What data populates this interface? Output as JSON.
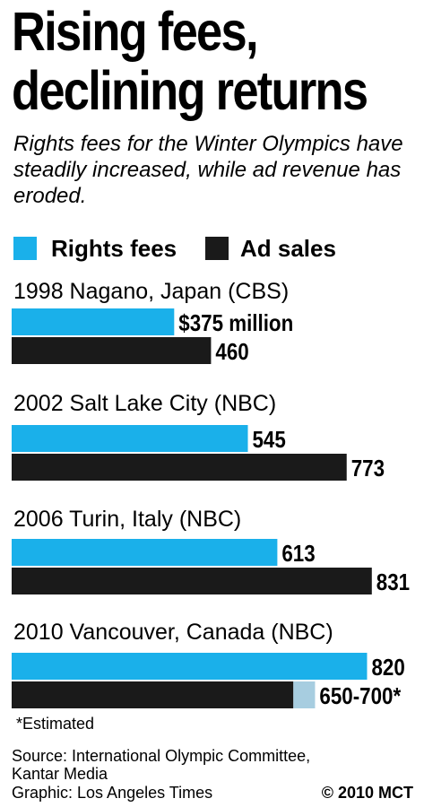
{
  "header": {
    "title_line1": "Rising fees,",
    "title_line2": "declining returns",
    "subtitle": "Rights fees for the Winter Olympics have steadily increased, while ad revenue has eroded."
  },
  "colors": {
    "rights": "#1ab0ea",
    "ad": "#1a1a1a",
    "estimate": "#a7cde0"
  },
  "chart_data": {
    "type": "bar",
    "orientation": "horizontal",
    "legend": [
      "Rights fees",
      "Ad sales"
    ],
    "legend_placement": "top-left",
    "unit": "million",
    "groups": [
      {
        "label": "1998 Nagano, Japan (CBS)",
        "rights": 375,
        "ad": 460,
        "rights_label": "$375 million",
        "ad_label": "460"
      },
      {
        "label": "2002 Salt Lake City (NBC)",
        "rights": 545,
        "ad": 773,
        "rights_label": "545",
        "ad_label": "773"
      },
      {
        "label": "2006 Turin, Italy (NBC)",
        "rights": 613,
        "ad": 831,
        "rights_label": "613",
        "ad_label": "831"
      },
      {
        "label": "2010 Vancouver, Canada (NBC)",
        "rights": 820,
        "ad": 650,
        "ad_high": 700,
        "rights_label": "820",
        "ad_label": "650-700*"
      }
    ],
    "xlim": [
      0,
      900
    ]
  },
  "footer": {
    "note": "*Estimated",
    "source_line1": "Source: International Olympic Committee,",
    "source_line2": "Kantar Media",
    "credit": "Graphic: Los Angeles Times",
    "copyright": "© 2010 MCT"
  }
}
